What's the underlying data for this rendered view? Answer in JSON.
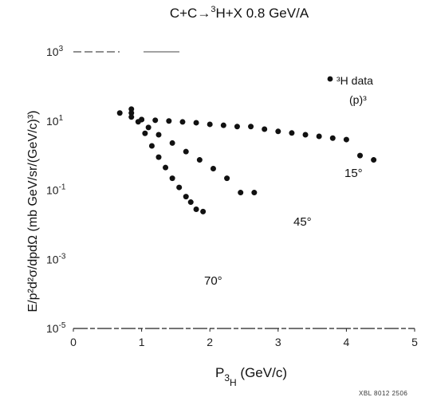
{
  "chart_data": {
    "type": "scatter",
    "title": {
      "main": "C+C→",
      "sup": "3",
      "rest": "H+X  0.8 GeV/A"
    },
    "xlabel": {
      "main": "P",
      "sub1": "3",
      "sub2": "H",
      "rest": " (GeV/c)"
    },
    "ylabel": "E/p²d²σ/dpdΩ (mb GeV/sr/(GeV/c)³)",
    "xlim": [
      0,
      5
    ],
    "ylim_log10": [
      -5,
      3
    ],
    "y_scale": "log",
    "x_ticks": [
      "0",
      "1",
      "2",
      "3",
      "4",
      "5"
    ],
    "y_ticks": [
      {
        "base": "10",
        "exp": "3",
        "value": 1000
      },
      {
        "base": "10",
        "exp": "1",
        "value": 10
      },
      {
        "base": "10",
        "exp": "-1",
        "value": 0.1
      },
      {
        "base": "10",
        "exp": "-3",
        "value": 0.001
      },
      {
        "base": "10",
        "exp": "-5",
        "value": 1e-05
      }
    ],
    "legend": {
      "marker_label": "³H  data",
      "sublabel": "(p)³",
      "position": "top-right"
    },
    "series": [
      {
        "label": "15°",
        "x": [
          0.68,
          0.85,
          1.0,
          1.2,
          1.4,
          1.6,
          1.8,
          2.0,
          2.2,
          2.4,
          2.6,
          2.8,
          3.0,
          3.2,
          3.4,
          3.6,
          3.8,
          4.0,
          4.2,
          4.4
        ],
        "y": [
          17,
          13,
          11,
          10.5,
          10,
          9.4,
          8.9,
          8.0,
          7.5,
          6.9,
          6.9,
          5.8,
          5.0,
          4.5,
          4.0,
          3.6,
          3.2,
          2.9,
          1.0,
          0.75
        ]
      },
      {
        "label": "45°",
        "x": [
          0.85,
          1.0,
          1.1,
          1.25,
          1.45,
          1.65,
          1.85,
          2.05,
          2.25,
          2.45,
          2.65
        ],
        "y": [
          17,
          11,
          6.5,
          4.0,
          2.3,
          1.3,
          0.75,
          0.42,
          0.22,
          0.085,
          0.085
        ]
      },
      {
        "label": "70°",
        "x": [
          0.85,
          0.95,
          1.05,
          1.15,
          1.25,
          1.35,
          1.45,
          1.55,
          1.65,
          1.72,
          1.8,
          1.9
        ],
        "y": [
          22,
          9.5,
          4.4,
          1.9,
          0.9,
          0.45,
          0.22,
          0.12,
          0.065,
          0.045,
          0.028,
          0.024
        ]
      }
    ],
    "grid": false
  },
  "footer_code": "XBL 8012 2506"
}
